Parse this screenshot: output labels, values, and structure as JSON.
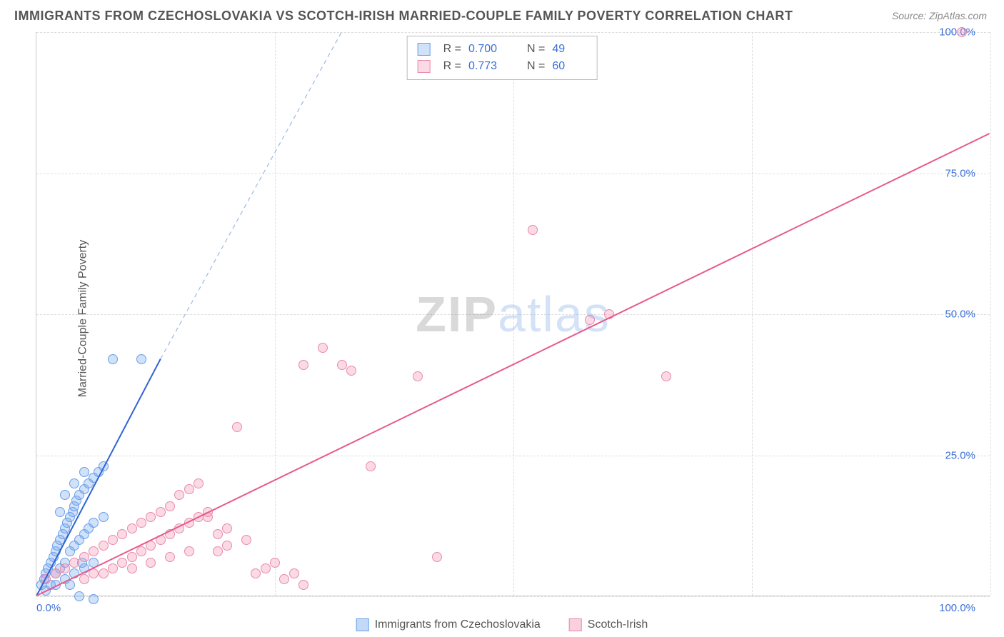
{
  "title": "IMMIGRANTS FROM CZECHOSLOVAKIA VS SCOTCH-IRISH MARRIED-COUPLE FAMILY POVERTY CORRELATION CHART",
  "source": "Source: ZipAtlas.com",
  "ylabel": "Married-Couple Family Poverty",
  "watermark_a": "ZIP",
  "watermark_b": "atlas",
  "chart": {
    "type": "scatter",
    "xlim": [
      0,
      100
    ],
    "ylim": [
      0,
      100
    ],
    "xtick_labels": {
      "0": "0.0%",
      "100": "100.0%"
    },
    "ytick_labels": {
      "25": "25.0%",
      "50": "50.0%",
      "75": "75.0%",
      "100": "100.0%"
    },
    "grid_h": [
      0,
      25,
      50,
      75,
      100
    ],
    "grid_v": [
      25,
      50,
      75,
      100
    ],
    "grid_color": "#dddddd",
    "background_color": "#ffffff",
    "axis_color": "#cccccc",
    "tick_label_color": "#3b6fd8",
    "tick_label_fontsize": 15,
    "marker_radius": 7,
    "series": [
      {
        "name": "Immigrants from Czechoslovakia",
        "fill": "rgba(120,170,240,0.35)",
        "stroke": "#6a9ee8",
        "line_color": "#2f63d6",
        "line_dash_color": "#9ab8ea",
        "line_width": 2,
        "fit_solid": {
          "x1": 0,
          "y1": 0,
          "x2": 13,
          "y2": 42
        },
        "fit_dash": {
          "x1": 13,
          "y1": 42,
          "x2": 32,
          "y2": 100
        },
        "R": "0.700",
        "N": "49",
        "points": [
          [
            0.5,
            2
          ],
          [
            0.8,
            3
          ],
          [
            1,
            4
          ],
          [
            1.2,
            5
          ],
          [
            1.5,
            6
          ],
          [
            1.5,
            2
          ],
          [
            1.8,
            7
          ],
          [
            2,
            8
          ],
          [
            2,
            4
          ],
          [
            2.2,
            9
          ],
          [
            2.5,
            10
          ],
          [
            2.5,
            5
          ],
          [
            2.8,
            11
          ],
          [
            3,
            12
          ],
          [
            3,
            6
          ],
          [
            3.2,
            13
          ],
          [
            3.5,
            14
          ],
          [
            3.5,
            8
          ],
          [
            3.8,
            15
          ],
          [
            4,
            16
          ],
          [
            4,
            9
          ],
          [
            4.2,
            17
          ],
          [
            4.5,
            18
          ],
          [
            4.5,
            10
          ],
          [
            5,
            19
          ],
          [
            5,
            11
          ],
          [
            5,
            22
          ],
          [
            5.5,
            20
          ],
          [
            5.5,
            12
          ],
          [
            6,
            21
          ],
          [
            6,
            13
          ],
          [
            6.5,
            22
          ],
          [
            7,
            23
          ],
          [
            7,
            14
          ],
          [
            1,
            1
          ],
          [
            2,
            2
          ],
          [
            3,
            3
          ],
          [
            4,
            4
          ],
          [
            5,
            5
          ],
          [
            6,
            6
          ],
          [
            3,
            18
          ],
          [
            4,
            20
          ],
          [
            2.5,
            15
          ],
          [
            8,
            42
          ],
          [
            11,
            42
          ],
          [
            3.5,
            2
          ],
          [
            4.5,
            0
          ],
          [
            6,
            -0.5
          ],
          [
            4.8,
            6
          ]
        ]
      },
      {
        "name": "Scotch-Irish",
        "fill": "rgba(245,150,180,0.35)",
        "stroke": "#e88aa8",
        "line_color": "#e75a8c",
        "line_width": 2,
        "fit_solid": {
          "x1": 0,
          "y1": 0,
          "x2": 100,
          "y2": 82
        },
        "R": "0.773",
        "N": "60",
        "points": [
          [
            1,
            3
          ],
          [
            2,
            4
          ],
          [
            3,
            5
          ],
          [
            4,
            6
          ],
          [
            5,
            7
          ],
          [
            6,
            8
          ],
          [
            7,
            9
          ],
          [
            8,
            10
          ],
          [
            9,
            11
          ],
          [
            10,
            12
          ],
          [
            11,
            13
          ],
          [
            12,
            14
          ],
          [
            13,
            15
          ],
          [
            14,
            16
          ],
          [
            15,
            18
          ],
          [
            16,
            19
          ],
          [
            17,
            20
          ],
          [
            18,
            14
          ],
          [
            19,
            8
          ],
          [
            20,
            9
          ],
          [
            21,
            30
          ],
          [
            22,
            10
          ],
          [
            23,
            4
          ],
          [
            24,
            5
          ],
          [
            25,
            6
          ],
          [
            26,
            3
          ],
          [
            27,
            4
          ],
          [
            28,
            41
          ],
          [
            30,
            44
          ],
          [
            32,
            41
          ],
          [
            33,
            40
          ],
          [
            35,
            23
          ],
          [
            40,
            39
          ],
          [
            42,
            7
          ],
          [
            66,
            39
          ],
          [
            97,
            100
          ],
          [
            5,
            3
          ],
          [
            6,
            4
          ],
          [
            7,
            4
          ],
          [
            8,
            5
          ],
          [
            9,
            6
          ],
          [
            10,
            7
          ],
          [
            11,
            8
          ],
          [
            12,
            9
          ],
          [
            13,
            10
          ],
          [
            14,
            11
          ],
          [
            15,
            12
          ],
          [
            16,
            13
          ],
          [
            17,
            14
          ],
          [
            18,
            15
          ],
          [
            19,
            11
          ],
          [
            20,
            12
          ],
          [
            10,
            5
          ],
          [
            12,
            6
          ],
          [
            14,
            7
          ],
          [
            16,
            8
          ],
          [
            52,
            65
          ],
          [
            58,
            49
          ],
          [
            60,
            50
          ],
          [
            28,
            2
          ]
        ]
      }
    ]
  },
  "bottom_legend": {
    "items": [
      {
        "label": "Immigrants from Czechoslovakia",
        "fill": "rgba(120,170,240,0.45)",
        "stroke": "#6a9ee8"
      },
      {
        "label": "Scotch-Irish",
        "fill": "rgba(245,150,180,0.45)",
        "stroke": "#e88aa8"
      }
    ]
  }
}
